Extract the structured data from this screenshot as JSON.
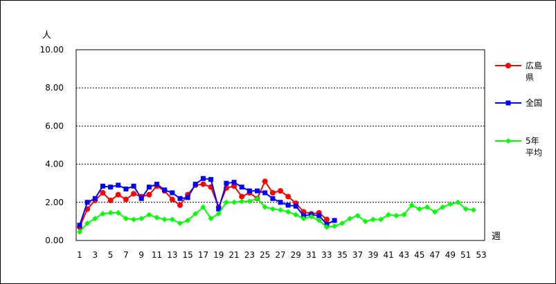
{
  "chart_data": {
    "type": "line",
    "title": "",
    "ylabel": "人",
    "xlabel": "週",
    "ylim": [
      0,
      10
    ],
    "yticks": [
      "0.00",
      "2.00",
      "4.00",
      "6.00",
      "8.00",
      "10.00"
    ],
    "xlim": [
      1,
      53
    ],
    "xticks": [
      "1",
      "3",
      "5",
      "7",
      "9",
      "11",
      "13",
      "15",
      "17",
      "19",
      "21",
      "23",
      "25",
      "27",
      "29",
      "31",
      "33",
      "35",
      "37",
      "39",
      "41",
      "43",
      "45",
      "47",
      "49",
      "51",
      "53"
    ],
    "grid": "horizontal dotted",
    "legend_position": "right",
    "series": [
      {
        "name": "広島県",
        "legend_lines": [
          "広島",
          "県"
        ],
        "color": "#ff0000",
        "marker": "circle",
        "x": [
          1,
          2,
          3,
          4,
          5,
          6,
          7,
          8,
          9,
          10,
          11,
          12,
          13,
          14,
          15,
          16,
          17,
          18,
          19,
          20,
          21,
          22,
          23,
          24,
          25,
          26,
          27,
          28,
          29,
          30,
          31,
          32,
          33
        ],
        "values": [
          0.7,
          1.65,
          2.1,
          2.5,
          2.1,
          2.4,
          2.15,
          2.45,
          2.3,
          2.4,
          2.85,
          2.6,
          2.15,
          1.85,
          2.4,
          2.9,
          2.95,
          2.8,
          1.75,
          2.75,
          2.85,
          2.3,
          2.5,
          2.2,
          3.1,
          2.5,
          2.6,
          2.3,
          1.95,
          1.5,
          1.4,
          1.45,
          1.1
        ]
      },
      {
        "name": "全国",
        "legend_lines": [
          "全国"
        ],
        "color": "#0000ff",
        "marker": "square",
        "x": [
          1,
          2,
          3,
          4,
          5,
          6,
          7,
          8,
          9,
          10,
          11,
          12,
          13,
          14,
          15,
          16,
          17,
          18,
          19,
          20,
          21,
          22,
          23,
          24,
          25,
          26,
          27,
          28,
          29,
          30,
          31,
          32,
          33,
          34
        ],
        "values": [
          0.8,
          2.0,
          2.2,
          2.85,
          2.8,
          2.9,
          2.7,
          2.85,
          2.2,
          2.8,
          2.95,
          2.65,
          2.5,
          2.2,
          2.25,
          2.95,
          3.25,
          3.2,
          1.65,
          3.0,
          3.05,
          2.8,
          2.6,
          2.6,
          2.5,
          2.2,
          2.0,
          1.85,
          1.8,
          1.3,
          1.35,
          1.3,
          0.85,
          1.05
        ]
      },
      {
        "name": "5年平均",
        "legend_lines": [
          "5年",
          "平均"
        ],
        "color": "#00ff00",
        "marker": "diamond",
        "x": [
          1,
          2,
          3,
          4,
          5,
          6,
          7,
          8,
          9,
          10,
          11,
          12,
          13,
          14,
          15,
          16,
          17,
          18,
          19,
          20,
          21,
          22,
          23,
          24,
          25,
          26,
          27,
          28,
          29,
          30,
          31,
          32,
          33,
          34,
          35,
          36,
          37,
          38,
          39,
          40,
          41,
          42,
          43,
          44,
          45,
          46,
          47,
          48,
          49,
          50,
          51,
          52
        ],
        "values": [
          0.45,
          0.9,
          1.15,
          1.4,
          1.45,
          1.45,
          1.15,
          1.1,
          1.15,
          1.35,
          1.2,
          1.1,
          1.1,
          0.9,
          1.05,
          1.4,
          1.75,
          1.15,
          1.4,
          2.0,
          2.0,
          2.05,
          2.05,
          2.2,
          1.75,
          1.65,
          1.6,
          1.5,
          1.35,
          1.15,
          1.25,
          1.05,
          0.7,
          0.75,
          0.9,
          1.15,
          1.3,
          1.0,
          1.1,
          1.1,
          1.35,
          1.3,
          1.35,
          1.85,
          1.65,
          1.75,
          1.5,
          1.75,
          1.9,
          2.0,
          1.65,
          1.6
        ]
      }
    ]
  }
}
